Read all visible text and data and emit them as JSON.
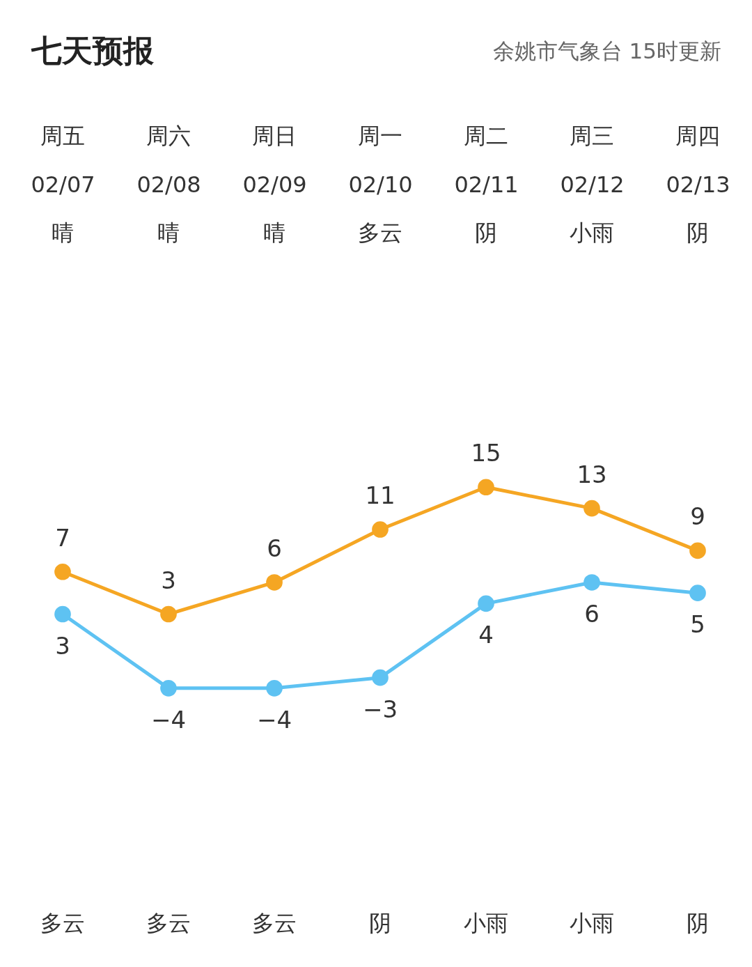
{
  "chart_data": {
    "type": "line",
    "title": "七天预报",
    "subtitle": "余姚市气象台 15时更新",
    "categories": [
      "02/07",
      "02/08",
      "02/09",
      "02/10",
      "02/11",
      "02/12",
      "02/13"
    ],
    "series": [
      {
        "color": "#f5a623",
        "values": [
          7,
          3,
          6,
          11,
          15,
          13,
          9
        ]
      },
      {
        "color": "#5ec2f2",
        "values": [
          3,
          -4,
          -4,
          -3,
          4,
          6,
          5
        ]
      }
    ],
    "annotations": [
      "周五",
      "周六",
      "周日",
      "周一",
      "周二",
      "周三",
      "周四",
      "晴",
      "晴",
      "晴",
      "多云",
      "阴",
      "小雨",
      "阴",
      "多云",
      "多云",
      "多云",
      "阴",
      "小雨",
      "小雨",
      "阴"
    ],
    "data_labels": true,
    "marker": "circle",
    "tick_labels": "x"
  }
}
